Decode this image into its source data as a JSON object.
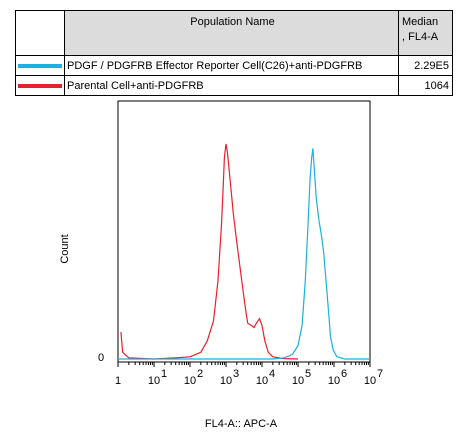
{
  "legend": {
    "header_name": "Population Name",
    "header_median_line1": "Median",
    "header_median_line2": ", FL4-A",
    "rows": [
      {
        "name": "PDGF / PDGFRB Effector Reporter Cell(C26)+anti-PDGFRB",
        "median": "2.29E5",
        "color": "#1ab0e0"
      },
      {
        "name": "Parental Cell+anti-PDGFRB",
        "median": "1064",
        "color": "#e8202a"
      }
    ]
  },
  "chart_data": {
    "type": "line",
    "xlabel": "FL4-A:: APC-A",
    "ylabel": "Count",
    "x_scale": "log",
    "xlim": [
      1,
      10000000
    ],
    "y_tick_label": "0",
    "x_tick_labels": [
      "1",
      "10",
      "10",
      "10",
      "10",
      "10",
      "10",
      "10"
    ],
    "x_tick_exponents": [
      "",
      "1",
      "2",
      "3",
      "4",
      "5",
      "6",
      "7"
    ],
    "ylim": [
      0,
      1.0
    ],
    "series": [
      {
        "name": "Parental Cell+anti-PDGFRB",
        "color": "#e8202a",
        "points": [
          [
            1.2,
            0.12
          ],
          [
            1.35,
            0.03
          ],
          [
            2,
            0.005
          ],
          [
            10,
            0
          ],
          [
            40,
            0.005
          ],
          [
            100,
            0.01
          ],
          [
            200,
            0.03
          ],
          [
            300,
            0.08
          ],
          [
            450,
            0.17
          ],
          [
            600,
            0.35
          ],
          [
            750,
            0.6
          ],
          [
            850,
            0.8
          ],
          [
            900,
            0.9
          ],
          [
            950,
            0.93
          ],
          [
            1000,
            0.96
          ],
          [
            1100,
            0.92
          ],
          [
            1300,
            0.8
          ],
          [
            1600,
            0.65
          ],
          [
            2000,
            0.52
          ],
          [
            2500,
            0.4
          ],
          [
            3000,
            0.3
          ],
          [
            3500,
            0.22
          ],
          [
            4000,
            0.16
          ],
          [
            5000,
            0.15
          ],
          [
            6000,
            0.14
          ],
          [
            7000,
            0.16
          ],
          [
            8500,
            0.18
          ],
          [
            10000,
            0.15
          ],
          [
            12000,
            0.08
          ],
          [
            15000,
            0.03
          ],
          [
            20000,
            0.01
          ],
          [
            40000,
            0.002
          ],
          [
            100000,
            0
          ]
        ]
      },
      {
        "name": "PDGF / PDGFRB Effector Reporter Cell(C26)+anti-PDGFRB",
        "color": "#1ab0e0",
        "points": [
          [
            1,
            0
          ],
          [
            20000,
            0
          ],
          [
            40000,
            0.005
          ],
          [
            70000,
            0.02
          ],
          [
            100000,
            0.06
          ],
          [
            130000,
            0.15
          ],
          [
            160000,
            0.35
          ],
          [
            190000,
            0.6
          ],
          [
            215000,
            0.8
          ],
          [
            240000,
            0.9
          ],
          [
            260000,
            0.94
          ],
          [
            280000,
            0.86
          ],
          [
            320000,
            0.72
          ],
          [
            380000,
            0.62
          ],
          [
            450000,
            0.55
          ],
          [
            520000,
            0.47
          ],
          [
            600000,
            0.35
          ],
          [
            700000,
            0.22
          ],
          [
            800000,
            0.1
          ],
          [
            950000,
            0.04
          ],
          [
            1200000,
            0.01
          ],
          [
            2000000,
            0
          ],
          [
            10000000,
            0
          ]
        ]
      }
    ]
  }
}
